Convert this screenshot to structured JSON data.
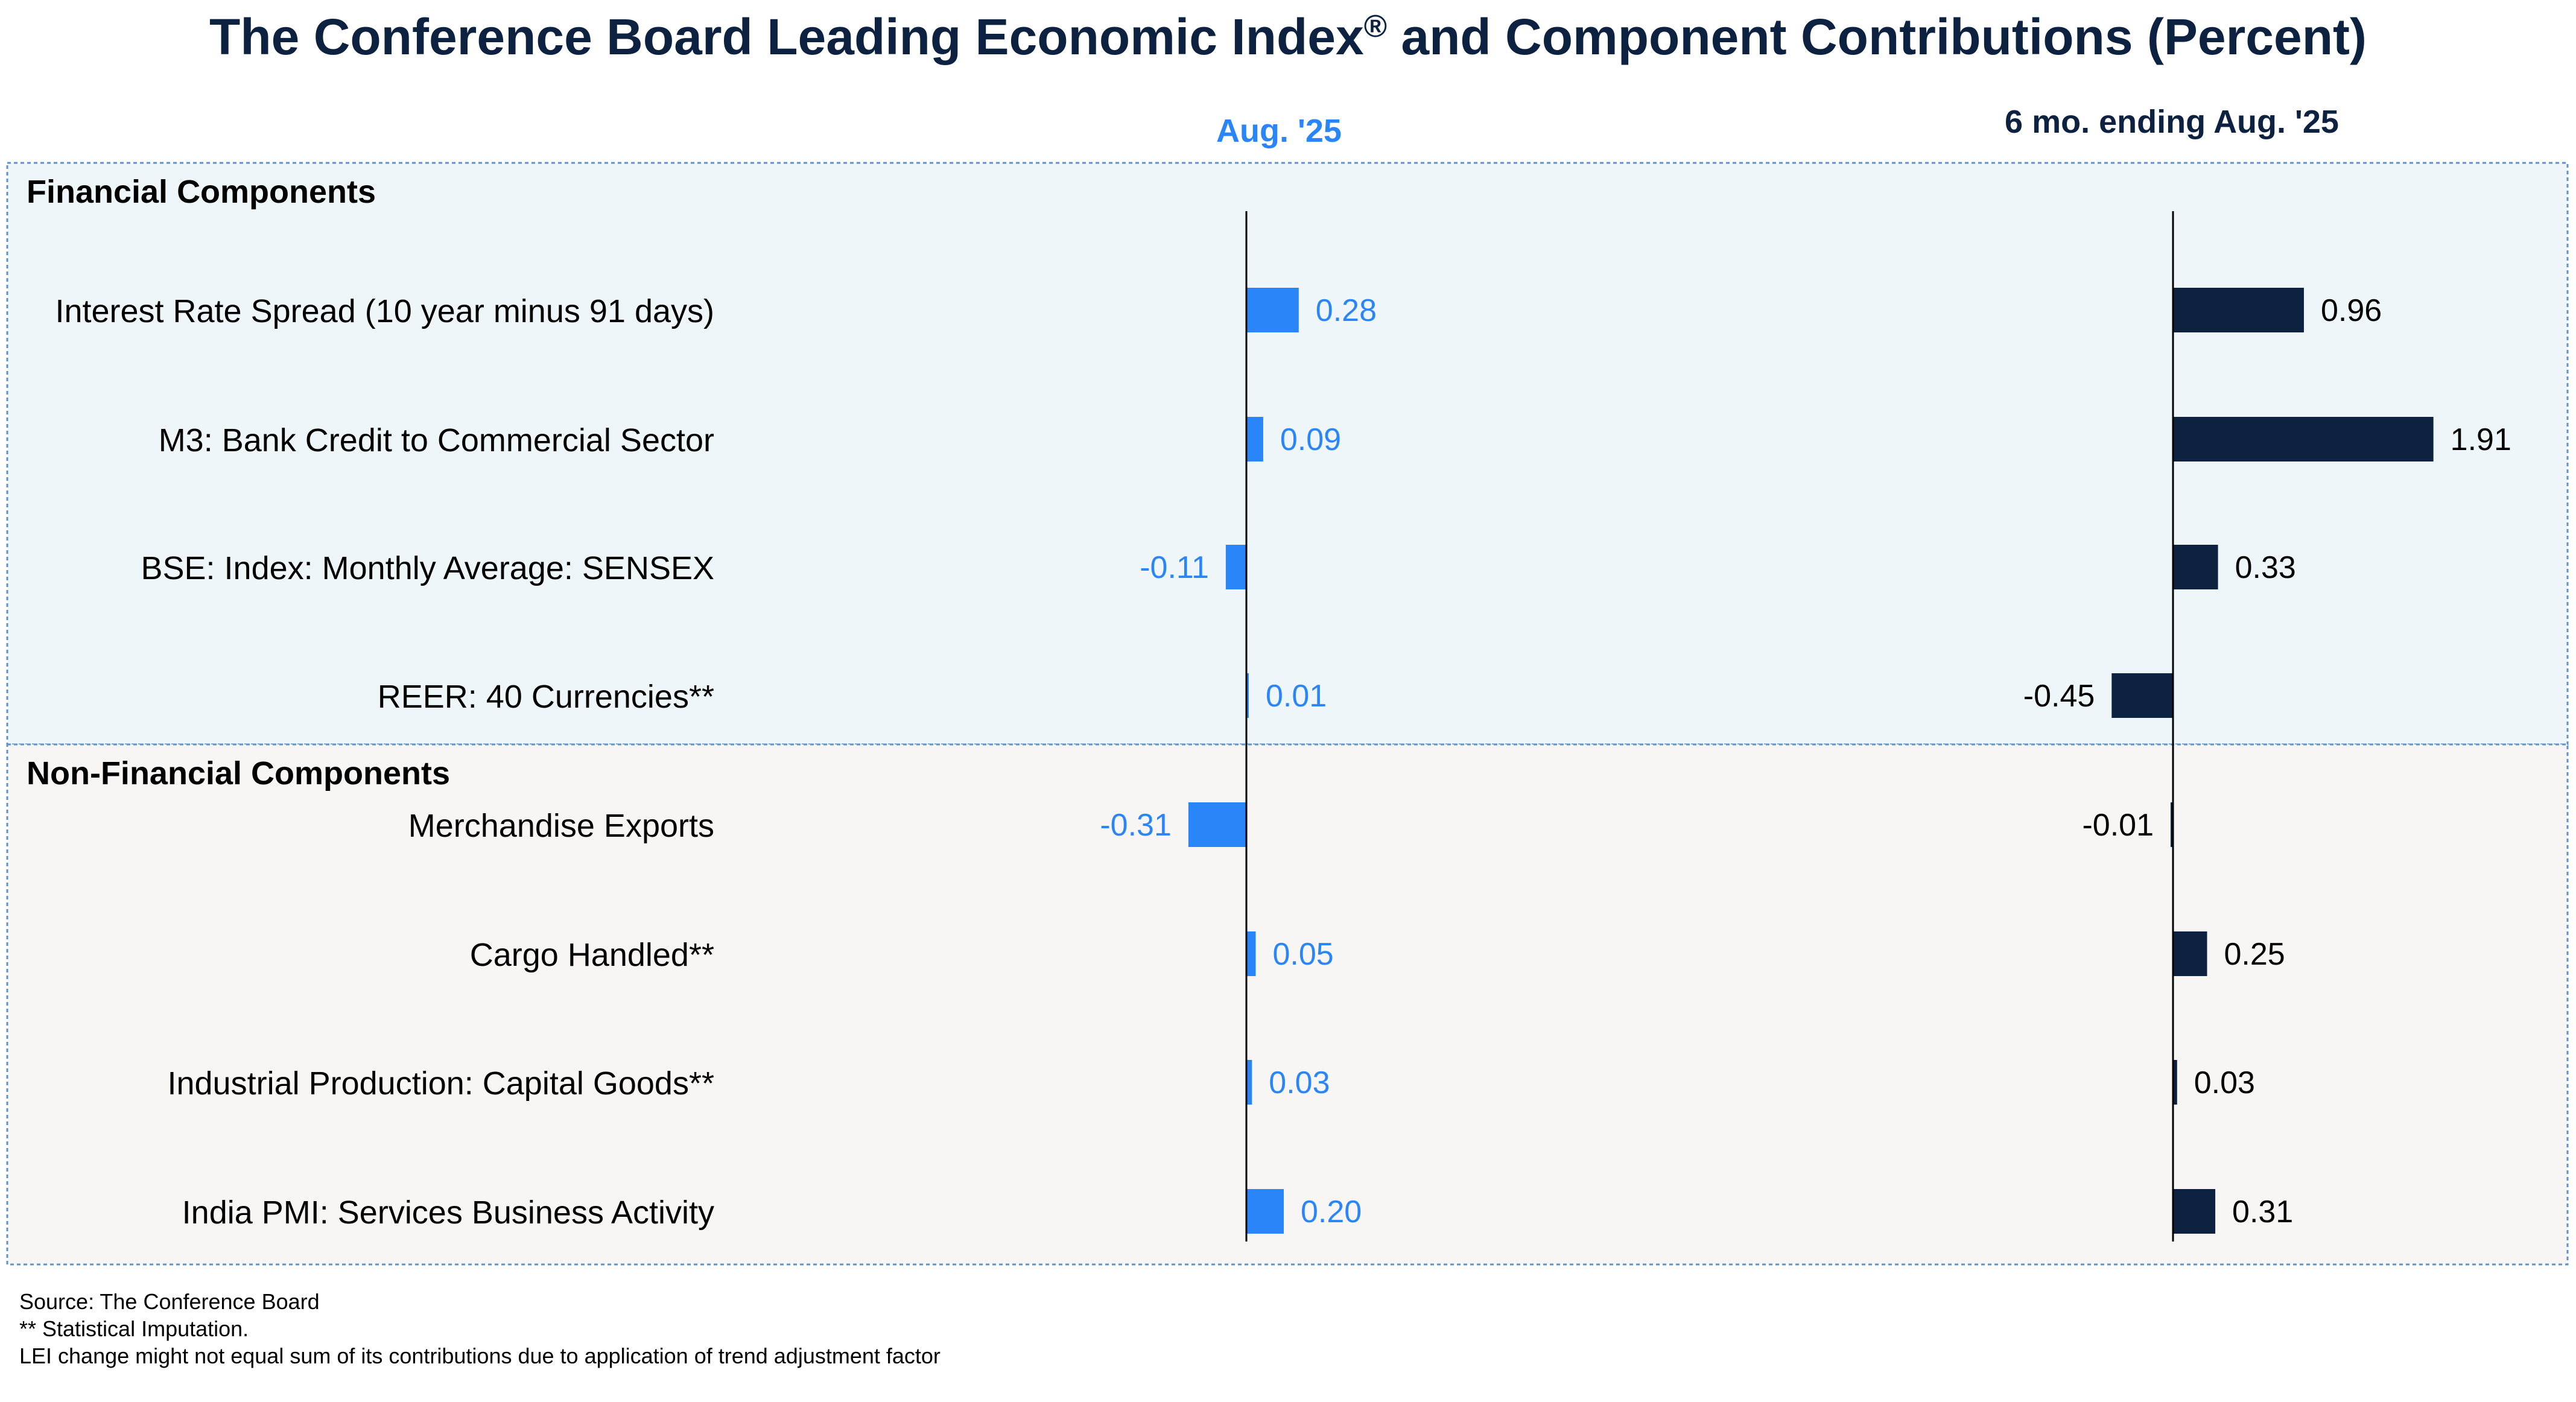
{
  "chart_data": {
    "type": "bar",
    "orientation": "horizontal",
    "title": "The Conference Board Leading Economic Index",
    "title_mark": "®",
    "title_suffix": " and Component Contributions (Percent)",
    "groups": [
      {
        "name": "Financial Components",
        "categories": [
          "Interest Rate Spread (10 year minus 91 days)",
          "M3: Bank Credit to Commercial Sector",
          "BSE: Index: Monthly Average: SENSEX",
          "REER: 40 Currencies**"
        ]
      },
      {
        "name": "Non-Financial Components",
        "categories": [
          "Merchandise Exports",
          "Cargo Handled**",
          "Industrial Production: Capital Goods**",
          "India PMI: Services Business Activity"
        ]
      }
    ],
    "series": [
      {
        "name": "Aug. '25",
        "color": "#2a86f8",
        "values": [
          0.28,
          0.09,
          -0.11,
          0.01,
          -0.31,
          0.05,
          0.03,
          0.2
        ],
        "labels": [
          "0.28",
          "0.09",
          "-0.11",
          "0.01",
          "-0.31",
          "0.05",
          "0.03",
          "0.20"
        ]
      },
      {
        "name": "6 mo. ending Aug. '25",
        "color": "#0d2240",
        "values": [
          0.96,
          1.91,
          0.33,
          -0.45,
          -0.01,
          0.25,
          0.03,
          0.31
        ],
        "labels": [
          "0.96",
          "1.91",
          "0.33",
          "-0.45",
          "-0.01",
          "0.25",
          "0.03",
          "0.31"
        ]
      }
    ],
    "panel_colors": {
      "financial": "#eef6f9",
      "non_financial": "#f7f6f4"
    },
    "legend": "none",
    "grid": false
  },
  "footnotes": [
    "Source: The Conference Board",
    "**  Statistical Imputation.",
    "LEI change might not equal sum of its contributions due to application of trend adjustment factor"
  ]
}
